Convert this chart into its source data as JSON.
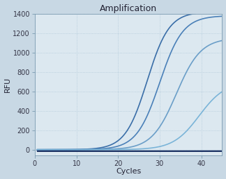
{
  "title": "Amplification",
  "xlabel": "Cycles",
  "ylabel": "RFU",
  "xlim": [
    0,
    45
  ],
  "ylim": [
    -60,
    1400
  ],
  "yticks": [
    0,
    200,
    400,
    600,
    800,
    1000,
    1200,
    1400
  ],
  "xticks": [
    0,
    10,
    20,
    30,
    40
  ],
  "plot_bg": "#dce8f0",
  "figure_bg": "#c8d8e4",
  "grid_color": "#b0c8d8",
  "grid_style": "dotted",
  "title_fontsize": 9,
  "label_fontsize": 8,
  "tick_fontsize": 7,
  "curves": [
    {
      "L": 1420,
      "k": 0.38,
      "x0": 27.0,
      "color": "#3a6ea8",
      "lw": 1.2
    },
    {
      "L": 1380,
      "k": 0.36,
      "x0": 30.0,
      "color": "#4a80b8",
      "lw": 1.2
    },
    {
      "L": 1150,
      "k": 0.34,
      "x0": 34.0,
      "color": "#6a9ec8",
      "lw": 1.2
    },
    {
      "L": 700,
      "k": 0.32,
      "x0": 39.5,
      "color": "#7ab4d8",
      "lw": 1.2
    }
  ],
  "flat_lines": [
    {
      "y": -10,
      "color": "#1a3060",
      "lw": 1.0
    },
    {
      "y": -8,
      "color": "#1e3870",
      "lw": 0.8
    },
    {
      "y": -6,
      "color": "#223f80",
      "lw": 0.8
    },
    {
      "y": -12,
      "color": "#1a3060",
      "lw": 0.8
    },
    {
      "y": -14,
      "color": "#263a6e",
      "lw": 0.7
    },
    {
      "y": -16,
      "color": "#1a3060",
      "lw": 0.7
    }
  ]
}
